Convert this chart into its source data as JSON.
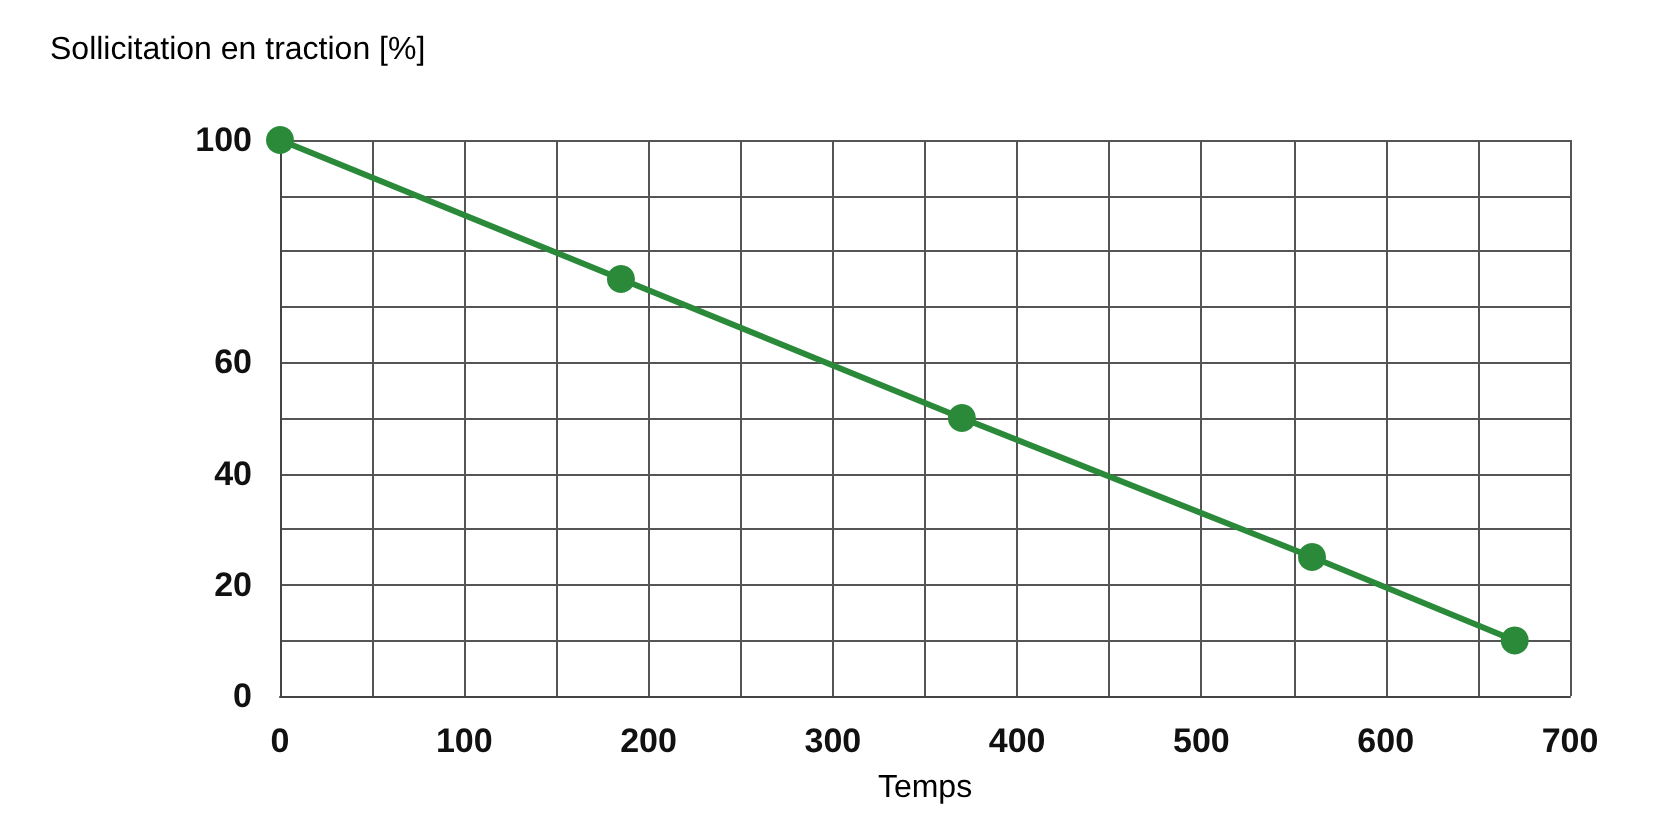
{
  "chart_data": {
    "type": "line",
    "title": "Sollicitation en traction [%]",
    "xlabel": "Temps",
    "x": [
      0,
      185,
      370,
      560,
      670
    ],
    "series": [
      {
        "color": "#2a8a3a",
        "values": [
          100,
          75,
          50,
          25,
          10
        ]
      }
    ],
    "xlim": [
      0,
      700
    ],
    "ylim": [
      0,
      100
    ],
    "xticks": [
      0,
      {
        "value": 50,
        "label": null
      },
      100,
      {
        "value": 150,
        "label": null
      },
      200,
      {
        "value": 250,
        "label": null
      },
      300,
      {
        "value": 350,
        "label": null
      },
      400,
      {
        "value": 450,
        "label": null
      },
      500,
      {
        "value": 550,
        "label": null
      },
      600,
      {
        "value": 650,
        "label": null
      },
      700
    ],
    "yticks": [
      0,
      {
        "value": 10,
        "label": null
      },
      20,
      {
        "value": 30,
        "label": null
      },
      40,
      {
        "value": 50,
        "label": null
      },
      60,
      {
        "value": 70,
        "label": null
      },
      {
        "value": 80,
        "label": null
      },
      {
        "value": 90,
        "label": null
      },
      100
    ],
    "grid": true,
    "marker": "circle",
    "line_style": "solid"
  }
}
